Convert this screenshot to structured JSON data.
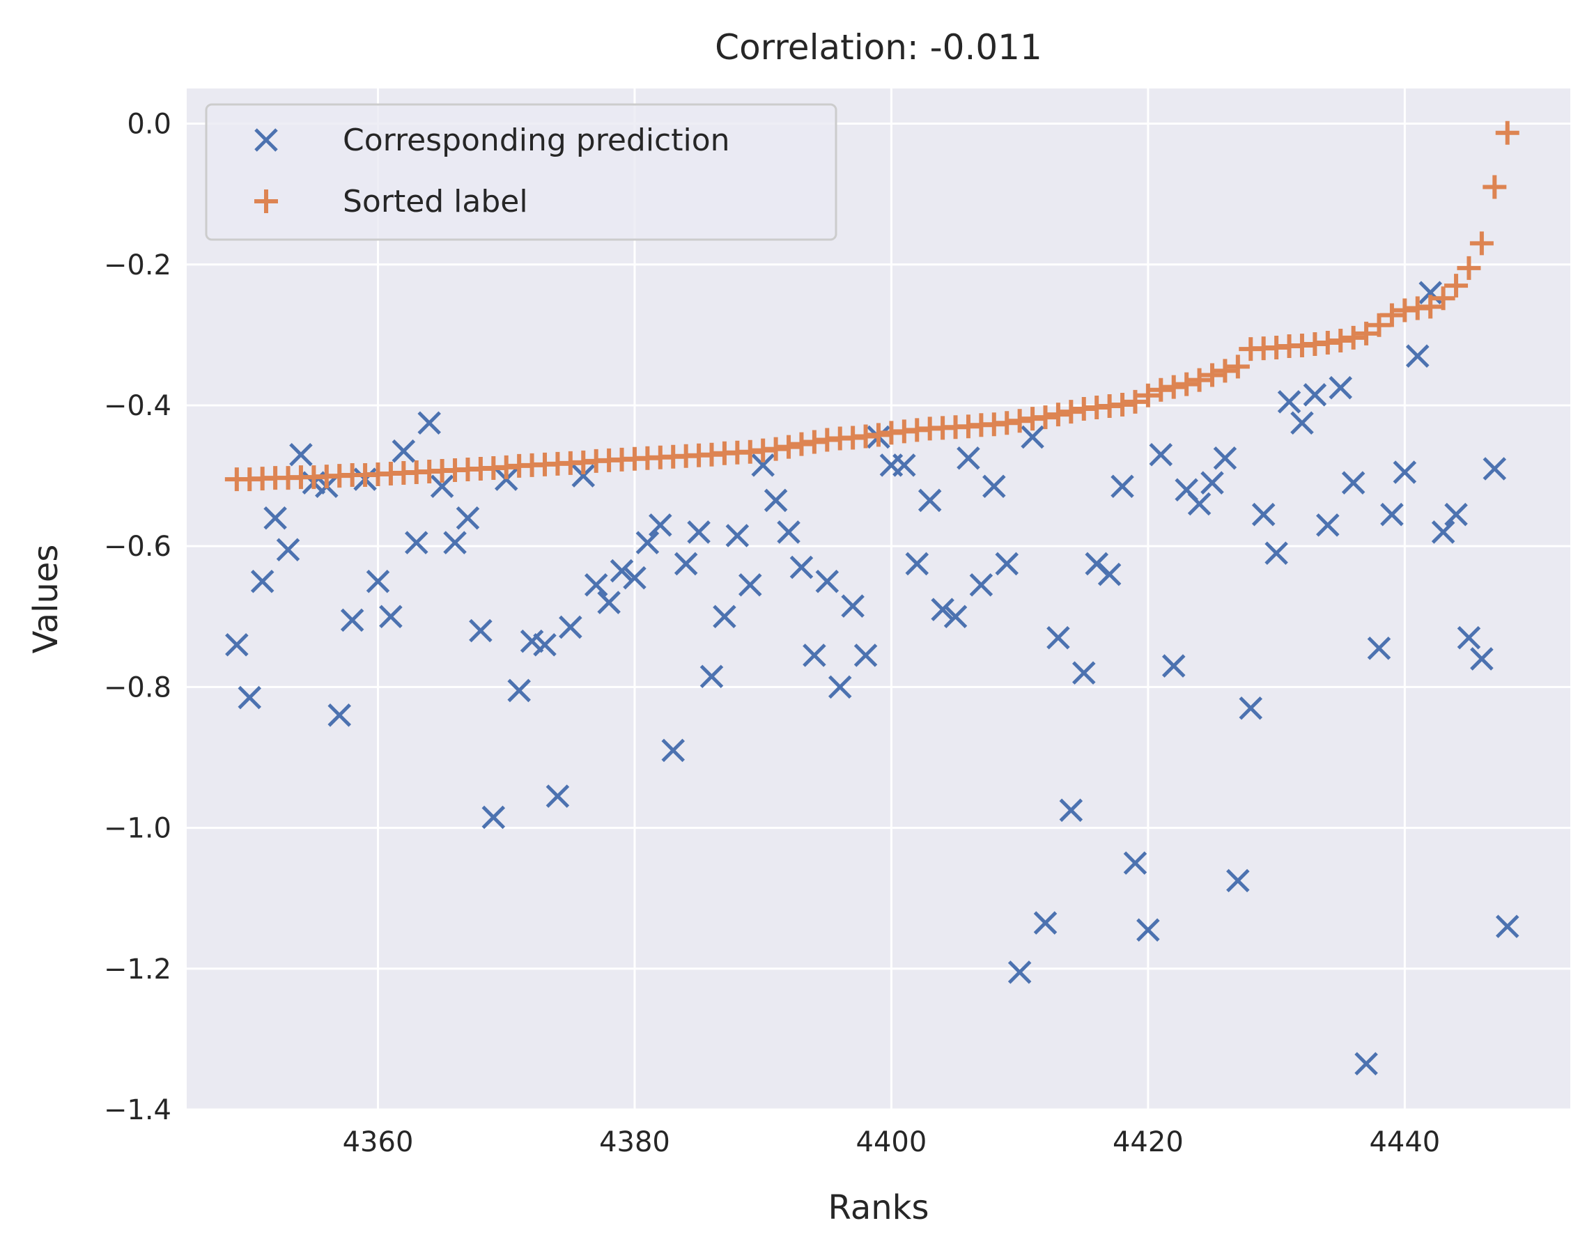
{
  "chart_data": {
    "type": "scatter",
    "title": "Correlation: -0.011",
    "xlabel": "Ranks",
    "ylabel": "Values",
    "xlim": [
      4345.1,
      4452.9
    ],
    "ylim": [
      -1.4,
      0.05
    ],
    "xticks": [
      4360,
      4380,
      4400,
      4420,
      4440
    ],
    "xtick_labels": [
      "4360",
      "4380",
      "4400",
      "4420",
      "4440"
    ],
    "yticks": [
      0.0,
      -0.2,
      -0.4,
      -0.6,
      -0.8,
      -1.0,
      -1.2,
      -1.4
    ],
    "ytick_labels": [
      "0.0",
      "−0.2",
      "−0.4",
      "−0.6",
      "−0.8",
      "−1.0",
      "−1.2",
      "−1.4"
    ],
    "grid": true,
    "legend_position": "upper-left",
    "x_start": 4349,
    "series": [
      {
        "name": "Corresponding prediction",
        "marker": "x",
        "color": "#4c72b0",
        "values": [
          -0.74,
          -0.815,
          -0.65,
          -0.56,
          -0.605,
          -0.47,
          -0.51,
          -0.515,
          -0.84,
          -0.705,
          -0.505,
          -0.65,
          -0.7,
          -0.465,
          -0.595,
          -0.425,
          -0.515,
          -0.595,
          -0.56,
          -0.72,
          -0.985,
          -0.505,
          -0.805,
          -0.735,
          -0.74,
          -0.955,
          -0.715,
          -0.5,
          -0.655,
          -0.68,
          -0.635,
          -0.645,
          -0.595,
          -0.57,
          -0.89,
          -0.625,
          -0.58,
          -0.785,
          -0.7,
          -0.585,
          -0.655,
          -0.485,
          -0.535,
          -0.58,
          -0.63,
          -0.755,
          -0.65,
          -0.8,
          -0.685,
          -0.755,
          -0.445,
          -0.485,
          -0.485,
          -0.625,
          -0.535,
          -0.69,
          -0.7,
          -0.475,
          -0.655,
          -0.515,
          -0.625,
          -1.205,
          -0.445,
          -1.135,
          -0.73,
          -0.975,
          -0.78,
          -0.625,
          -0.64,
          -0.515,
          -1.05,
          -1.145,
          -0.47,
          -0.77,
          -0.52,
          -0.54,
          -0.51,
          -0.475,
          -1.075,
          -0.83,
          -0.555,
          -0.61,
          -0.395,
          -0.425,
          -0.385,
          -0.57,
          -0.375,
          -0.51,
          -1.335,
          -0.745,
          -0.555,
          -0.495,
          -0.33,
          -0.24,
          -0.58,
          -0.555,
          -0.73,
          -0.76,
          -0.49,
          -1.14
        ]
      },
      {
        "name": "Sorted label",
        "marker": "+",
        "color": "#dd8452",
        "values": [
          -0.505,
          -0.505,
          -0.504,
          -0.503,
          -0.503,
          -0.502,
          -0.502,
          -0.501,
          -0.5,
          -0.499,
          -0.499,
          -0.498,
          -0.497,
          -0.496,
          -0.495,
          -0.494,
          -0.493,
          -0.492,
          -0.491,
          -0.49,
          -0.489,
          -0.488,
          -0.486,
          -0.485,
          -0.484,
          -0.483,
          -0.482,
          -0.481,
          -0.479,
          -0.478,
          -0.477,
          -0.476,
          -0.475,
          -0.474,
          -0.473,
          -0.472,
          -0.471,
          -0.47,
          -0.468,
          -0.467,
          -0.466,
          -0.464,
          -0.462,
          -0.459,
          -0.455,
          -0.452,
          -0.449,
          -0.447,
          -0.446,
          -0.444,
          -0.442,
          -0.439,
          -0.437,
          -0.435,
          -0.433,
          -0.432,
          -0.431,
          -0.43,
          -0.428,
          -0.427,
          -0.425,
          -0.422,
          -0.419,
          -0.417,
          -0.413,
          -0.409,
          -0.405,
          -0.403,
          -0.401,
          -0.399,
          -0.395,
          -0.386,
          -0.378,
          -0.374,
          -0.37,
          -0.364,
          -0.357,
          -0.351,
          -0.345,
          -0.32,
          -0.319,
          -0.318,
          -0.316,
          -0.315,
          -0.313,
          -0.311,
          -0.308,
          -0.304,
          -0.298,
          -0.286,
          -0.272,
          -0.265,
          -0.262,
          -0.26,
          -0.248,
          -0.23,
          -0.205,
          -0.17,
          -0.09,
          -0.013
        ]
      }
    ]
  }
}
